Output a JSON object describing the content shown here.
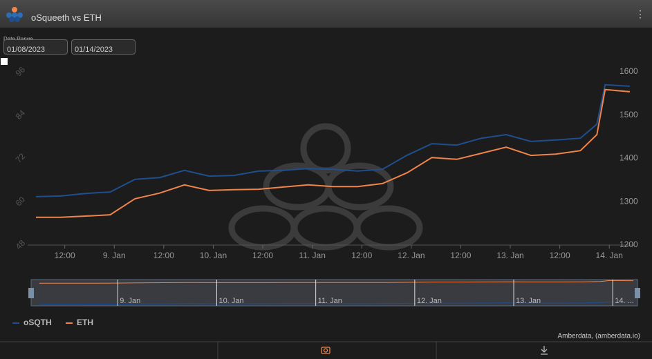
{
  "header": {
    "title": "oSqueeth vs ETH"
  },
  "date_range": {
    "label": "Date Range",
    "from": "01/08/2023",
    "to": "01/14/2023"
  },
  "credit": "Amberdata, (amberdata.io)",
  "navigator": {
    "labels": [
      "9. Jan",
      "10. Jan",
      "11. Jan",
      "12. Jan",
      "13. Jan",
      "14. ..."
    ]
  },
  "chart_data": {
    "type": "line",
    "x": [
      "2023-01-08T05:00",
      "2023-01-08T11:00",
      "2023-01-08T17:00",
      "2023-01-08T23:00",
      "2023-01-09T05:00",
      "2023-01-09T11:00",
      "2023-01-09T17:00",
      "2023-01-09T23:00",
      "2023-01-10T05:00",
      "2023-01-10T11:00",
      "2023-01-10T17:00",
      "2023-01-10T23:00",
      "2023-01-11T05:00",
      "2023-01-11T11:00",
      "2023-01-11T17:00",
      "2023-01-11T23:00",
      "2023-01-12T05:00",
      "2023-01-12T11:00",
      "2023-01-12T17:00",
      "2023-01-12T23:00",
      "2023-01-13T05:00",
      "2023-01-13T11:00",
      "2023-01-13T17:00",
      "2023-01-13T21:00",
      "2023-01-13T23:00",
      "2023-01-14T05:00"
    ],
    "series": [
      {
        "name": "oSQTH",
        "color": "#1f4f8f",
        "axis": "y",
        "values": [
          61.4,
          61.6,
          62.3,
          62.7,
          66.2,
          66.7,
          68.7,
          67.1,
          67.3,
          68.5,
          68.7,
          69.2,
          69.0,
          68.5,
          69.0,
          72.9,
          76.1,
          75.7,
          77.6,
          78.6,
          76.7,
          77.1,
          77.6,
          81.5,
          92.4,
          92.0
        ]
      },
      {
        "name": "ETH",
        "color": "#f0844a",
        "axis": "y2",
        "values": [
          1264,
          1264,
          1267,
          1270,
          1307,
          1320,
          1339,
          1326,
          1328,
          1329,
          1334,
          1339,
          1335,
          1335,
          1342,
          1367,
          1402,
          1398,
          1412,
          1426,
          1407,
          1410,
          1418,
          1455,
          1559,
          1554
        ]
      }
    ],
    "xlim": [
      "2023-01-08T03:00",
      "2023-01-14T06:00"
    ],
    "xticks": [
      {
        "value": "2023-01-08T12:00",
        "label": "12:00"
      },
      {
        "value": "2023-01-09T00:00",
        "label": "9. Jan"
      },
      {
        "value": "2023-01-09T12:00",
        "label": "12:00"
      },
      {
        "value": "2023-01-10T00:00",
        "label": "10. Jan"
      },
      {
        "value": "2023-01-10T12:00",
        "label": "12:00"
      },
      {
        "value": "2023-01-11T00:00",
        "label": "11. Jan"
      },
      {
        "value": "2023-01-11T12:00",
        "label": "12:00"
      },
      {
        "value": "2023-01-12T00:00",
        "label": "12. Jan"
      },
      {
        "value": "2023-01-12T12:00",
        "label": "12:00"
      },
      {
        "value": "2023-01-13T00:00",
        "label": "13. Jan"
      },
      {
        "value": "2023-01-13T12:00",
        "label": "12:00"
      },
      {
        "value": "2023-01-14T00:00",
        "label": "14. Jan"
      }
    ],
    "ylim": [
      48,
      96
    ],
    "yticks": [
      48,
      60,
      72,
      84,
      96
    ],
    "y2lim": [
      1200,
      1600
    ],
    "y2ticks": [
      1200,
      1300,
      1400,
      1500,
      1600
    ],
    "legend": "bottom-left"
  }
}
